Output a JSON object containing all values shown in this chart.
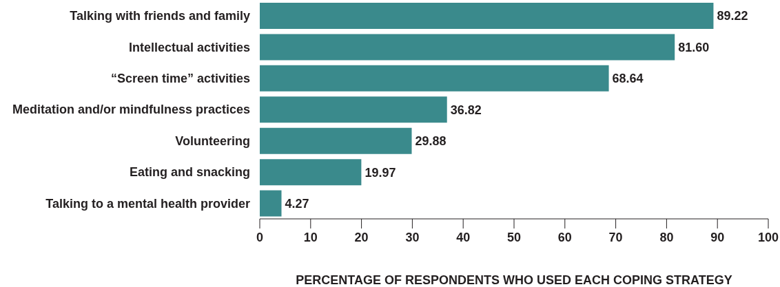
{
  "chart_data": {
    "type": "bar",
    "orientation": "horizontal",
    "xlabel": "PERCENTAGE OF RESPONDENTS WHO USED EACH COPING STRATEGY",
    "categories": [
      "Talking with friends and family",
      "Intellectual activities",
      "“Screen time” activities",
      "Meditation and/or mindfulness practices",
      "Volunteering",
      "Eating and snacking ",
      "Talking to a mental health provider"
    ],
    "values": [
      89.22,
      81.6,
      68.64,
      36.82,
      29.88,
      19.97,
      4.27
    ],
    "value_labels": [
      "89.22",
      "81.60",
      "68.64",
      "36.82",
      "29.88",
      "19.97",
      "4.27"
    ],
    "color": "#3a8a8c",
    "xlim": [
      0,
      100
    ],
    "xticks": [
      0,
      10,
      20,
      30,
      40,
      50,
      60,
      70,
      80,
      90,
      100
    ],
    "grid": false,
    "legend": false
  }
}
